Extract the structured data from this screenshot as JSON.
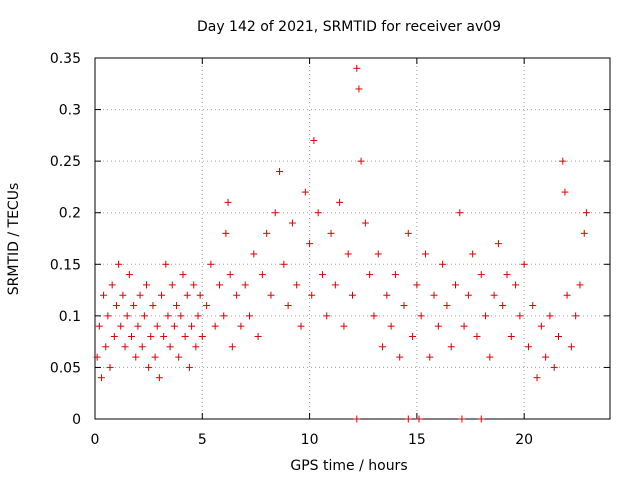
{
  "chart_data": {
    "type": "scatter",
    "title": "Day 142 of 2021, SRMTID for receiver av09",
    "xlabel": "GPS time / hours",
    "ylabel": "SRMTID / TECUs",
    "xlim": [
      0,
      24
    ],
    "ylim": [
      0,
      0.35
    ],
    "xticks": [
      0,
      5,
      10,
      15,
      20
    ],
    "xtick_labels": [
      "0",
      "5",
      "10",
      "15",
      "20"
    ],
    "yticks": [
      0,
      0.05,
      0.1,
      0.15,
      0.2,
      0.25,
      0.3,
      0.35
    ],
    "ytick_labels": [
      "0",
      "0.05",
      "0.1",
      "0.15",
      "0.2",
      "0.25",
      "0.3",
      "0.35"
    ],
    "grid": true,
    "marker": "+",
    "color": "#dd0000",
    "series": [
      {
        "name": "SRMTID",
        "points": [
          [
            0.1,
            0.06
          ],
          [
            0.2,
            0.09
          ],
          [
            0.3,
            0.04
          ],
          [
            0.4,
            0.12
          ],
          [
            0.5,
            0.07
          ],
          [
            0.6,
            0.1
          ],
          [
            0.7,
            0.05
          ],
          [
            0.8,
            0.13
          ],
          [
            0.9,
            0.08
          ],
          [
            1.0,
            0.11
          ],
          [
            1.1,
            0.15
          ],
          [
            1.2,
            0.09
          ],
          [
            1.3,
            0.12
          ],
          [
            1.4,
            0.07
          ],
          [
            1.5,
            0.1
          ],
          [
            1.6,
            0.14
          ],
          [
            1.7,
            0.08
          ],
          [
            1.8,
            0.11
          ],
          [
            1.9,
            0.06
          ],
          [
            2.0,
            0.09
          ],
          [
            2.1,
            0.12
          ],
          [
            2.2,
            0.07
          ],
          [
            2.3,
            0.1
          ],
          [
            2.4,
            0.13
          ],
          [
            2.5,
            0.05
          ],
          [
            2.6,
            0.08
          ],
          [
            2.7,
            0.11
          ],
          [
            2.8,
            0.06
          ],
          [
            2.9,
            0.09
          ],
          [
            3.0,
            0.04
          ],
          [
            3.1,
            0.12
          ],
          [
            3.2,
            0.08
          ],
          [
            3.3,
            0.15
          ],
          [
            3.4,
            0.1
          ],
          [
            3.5,
            0.07
          ],
          [
            3.6,
            0.13
          ],
          [
            3.7,
            0.09
          ],
          [
            3.8,
            0.11
          ],
          [
            3.9,
            0.06
          ],
          [
            4.0,
            0.1
          ],
          [
            4.1,
            0.14
          ],
          [
            4.2,
            0.08
          ],
          [
            4.3,
            0.12
          ],
          [
            4.4,
            0.05
          ],
          [
            4.5,
            0.09
          ],
          [
            4.6,
            0.13
          ],
          [
            4.7,
            0.07
          ],
          [
            4.8,
            0.1
          ],
          [
            4.9,
            0.12
          ],
          [
            5.0,
            0.08
          ],
          [
            5.2,
            0.11
          ],
          [
            5.4,
            0.15
          ],
          [
            5.6,
            0.09
          ],
          [
            5.8,
            0.13
          ],
          [
            6.0,
            0.1
          ],
          [
            6.1,
            0.18
          ],
          [
            6.2,
            0.21
          ],
          [
            6.3,
            0.14
          ],
          [
            6.4,
            0.07
          ],
          [
            6.6,
            0.12
          ],
          [
            6.8,
            0.09
          ],
          [
            7.0,
            0.13
          ],
          [
            7.2,
            0.1
          ],
          [
            7.4,
            0.16
          ],
          [
            7.6,
            0.08
          ],
          [
            7.8,
            0.14
          ],
          [
            8.0,
            0.18
          ],
          [
            8.2,
            0.12
          ],
          [
            8.4,
            0.2
          ],
          [
            8.6,
            0.24
          ],
          [
            8.8,
            0.15
          ],
          [
            9.0,
            0.11
          ],
          [
            9.2,
            0.19
          ],
          [
            9.4,
            0.13
          ],
          [
            9.6,
            0.09
          ],
          [
            9.8,
            0.22
          ],
          [
            10.0,
            0.17
          ],
          [
            10.1,
            0.12
          ],
          [
            10.2,
            0.27
          ],
          [
            10.4,
            0.2
          ],
          [
            10.6,
            0.14
          ],
          [
            10.8,
            0.1
          ],
          [
            11.0,
            0.18
          ],
          [
            11.2,
            0.13
          ],
          [
            11.4,
            0.21
          ],
          [
            11.6,
            0.09
          ],
          [
            11.8,
            0.16
          ],
          [
            12.0,
            0.12
          ],
          [
            12.2,
            0.34
          ],
          [
            12.3,
            0.32
          ],
          [
            12.4,
            0.25
          ],
          [
            12.6,
            0.19
          ],
          [
            12.8,
            0.14
          ],
          [
            13.0,
            0.1
          ],
          [
            13.2,
            0.16
          ],
          [
            13.4,
            0.07
          ],
          [
            13.6,
            0.12
          ],
          [
            13.8,
            0.09
          ],
          [
            14.0,
            0.14
          ],
          [
            14.2,
            0.06
          ],
          [
            14.4,
            0.11
          ],
          [
            14.6,
            0.18
          ],
          [
            14.8,
            0.08
          ],
          [
            15.0,
            0.13
          ],
          [
            15.2,
            0.1
          ],
          [
            15.4,
            0.16
          ],
          [
            15.6,
            0.06
          ],
          [
            15.8,
            0.12
          ],
          [
            16.0,
            0.09
          ],
          [
            16.2,
            0.15
          ],
          [
            16.4,
            0.11
          ],
          [
            16.6,
            0.07
          ],
          [
            16.8,
            0.13
          ],
          [
            17.0,
            0.2
          ],
          [
            17.2,
            0.09
          ],
          [
            17.4,
            0.12
          ],
          [
            17.6,
            0.16
          ],
          [
            17.8,
            0.08
          ],
          [
            18.0,
            0.14
          ],
          [
            18.2,
            0.1
          ],
          [
            18.4,
            0.06
          ],
          [
            18.6,
            0.12
          ],
          [
            18.8,
            0.17
          ],
          [
            19.0,
            0.11
          ],
          [
            19.2,
            0.14
          ],
          [
            19.4,
            0.08
          ],
          [
            19.6,
            0.13
          ],
          [
            19.8,
            0.1
          ],
          [
            20.0,
            0.15
          ],
          [
            20.2,
            0.07
          ],
          [
            20.4,
            0.11
          ],
          [
            20.6,
            0.04
          ],
          [
            20.8,
            0.09
          ],
          [
            21.0,
            0.06
          ],
          [
            21.2,
            0.1
          ],
          [
            21.4,
            0.05
          ],
          [
            21.6,
            0.08
          ],
          [
            21.8,
            0.25
          ],
          [
            21.9,
            0.22
          ],
          [
            22.0,
            0.12
          ],
          [
            22.2,
            0.07
          ],
          [
            22.4,
            0.1
          ],
          [
            22.6,
            0.13
          ],
          [
            22.8,
            0.18
          ],
          [
            22.9,
            0.2
          ]
        ]
      },
      {
        "name": "Zero markers",
        "points": [
          [
            12.2,
            0
          ],
          [
            14.6,
            0
          ],
          [
            15.1,
            0
          ],
          [
            17.1,
            0
          ],
          [
            18.0,
            0
          ]
        ]
      }
    ]
  }
}
